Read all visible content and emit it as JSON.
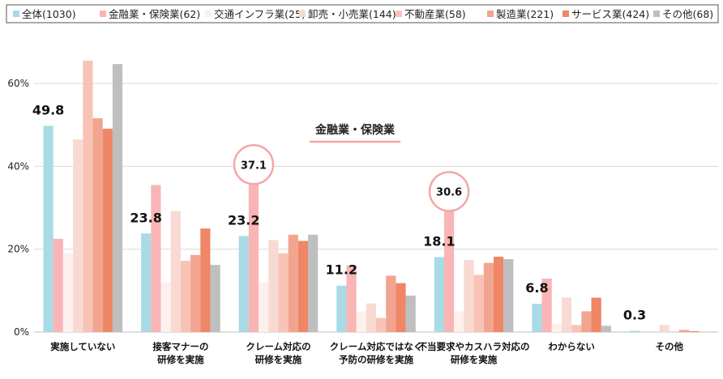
{
  "chart_data": {
    "type": "bar",
    "title": "",
    "xlabel": "",
    "ylabel": "",
    "ylim": [
      0,
      70
    ],
    "yticks": [
      0,
      20,
      40,
      60
    ],
    "ytick_labels": [
      "0%",
      "20%",
      "40%",
      "60%"
    ],
    "grid": true,
    "legend_position": "top",
    "categories": [
      [
        "実施していない"
      ],
      [
        "接客マナーの",
        "研修を実施"
      ],
      [
        "クレーム対応の",
        "研修を実施"
      ],
      [
        "クレーム対応ではなく",
        "予防の研修を実施"
      ],
      [
        "不当要求やカスハラ対応の",
        "研修を実施"
      ],
      [
        "わからない"
      ],
      [
        "その他"
      ]
    ],
    "series": [
      {
        "name": "全体(1030)",
        "color": "#a8dbe6",
        "values": [
          49.8,
          23.8,
          23.2,
          11.2,
          18.1,
          6.8,
          0.3
        ]
      },
      {
        "name": "金融業・保険業(62)",
        "color": "#f9b5b5",
        "values": [
          22.5,
          35.5,
          37.1,
          16.1,
          30.6,
          12.9,
          0.0
        ]
      },
      {
        "name": "交通インフラ業(25)",
        "color": "#fdf0ed",
        "values": [
          19.0,
          12.0,
          12.0,
          5.0,
          5.0,
          2.0,
          0.0
        ]
      },
      {
        "name": "卸売・小売業(144)",
        "color": "#f8dad2",
        "values": [
          46.5,
          29.2,
          22.2,
          6.9,
          17.4,
          8.3,
          1.7
        ]
      },
      {
        "name": "不動産業(58)",
        "color": "#f8c3b5",
        "values": [
          65.5,
          17.2,
          19.0,
          3.4,
          13.8,
          1.7,
          0.0
        ]
      },
      {
        "name": "製造業(221)",
        "color": "#f1a48f",
        "values": [
          51.6,
          18.6,
          23.5,
          13.6,
          16.7,
          5.0,
          0.5
        ]
      },
      {
        "name": "サービス業(424)",
        "color": "#ef8665",
        "values": [
          49.1,
          25.0,
          22.0,
          11.8,
          18.2,
          8.3,
          0.2
        ]
      },
      {
        "name": "その他(68)",
        "color": "#bfbfbf",
        "values": [
          64.7,
          16.2,
          23.5,
          8.8,
          17.6,
          1.5,
          0.0
        ]
      }
    ],
    "total_labels": [
      "49.8",
      "23.8",
      "23.2",
      "11.2",
      "18.1",
      "6.8",
      "0.3"
    ],
    "callouts": [
      {
        "category_index": 2,
        "series_index": 1,
        "label": "37.1",
        "circle_color": "#f4a6a6"
      },
      {
        "category_index": 4,
        "series_index": 1,
        "label": "30.6",
        "circle_color": "#f4a6a6"
      }
    ],
    "annotation": {
      "text": "金融業・保険業",
      "underline_color": "#f4a6a6"
    }
  }
}
